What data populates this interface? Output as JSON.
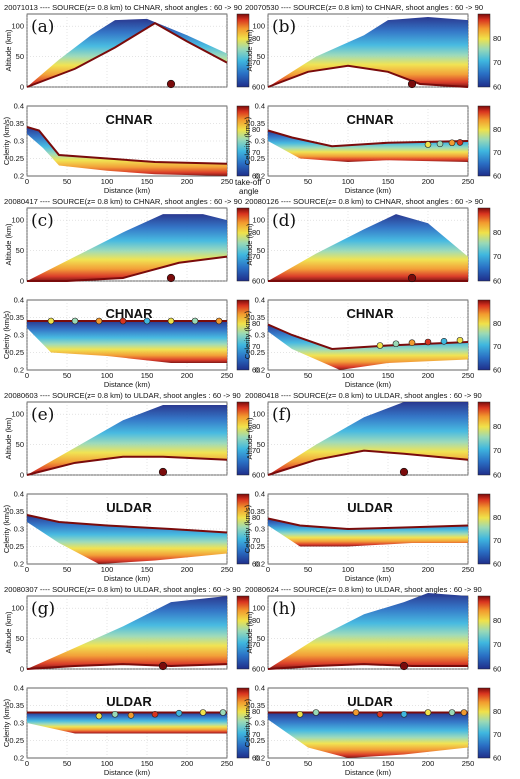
{
  "figure": {
    "colorbar_ticks": [
      60,
      70,
      80
    ],
    "colorbar_range": [
      60,
      90
    ],
    "colorbar_note_line1": "take-off",
    "colorbar_note_line2": "angle",
    "palette": [
      "#1f2e8a",
      "#2a6fc4",
      "#3fb7df",
      "#9ad9b6",
      "#f0e24a",
      "#f29a2e",
      "#d9341f",
      "#7a0b0b"
    ]
  },
  "chart_data": [
    {
      "id": "a",
      "label": "(a)",
      "title": "20071013 ---- SOURCE(z= 0.8 km) to CHNAR, shoot angles : 60 -> 90",
      "station": "CHNAR",
      "source_x_km": 180,
      "alt_ylabel": "Altitude (km)",
      "cel_ylabel": "Celerity (km/s)",
      "xlabel": "Distance (km)",
      "xlim": [
        0,
        250
      ],
      "alt_ylim": [
        0,
        120
      ],
      "cel_ylim": [
        0.2,
        0.4
      ],
      "type": "area",
      "alt_top": [
        [
          0,
          0
        ],
        [
          40,
          45
        ],
        [
          80,
          85
        ],
        [
          110,
          110
        ],
        [
          150,
          112
        ],
        [
          200,
          85
        ],
        [
          250,
          55
        ]
      ],
      "alt_bottom": [
        [
          0,
          0
        ],
        [
          60,
          30
        ],
        [
          110,
          65
        ],
        [
          160,
          105
        ],
        [
          200,
          75
        ],
        [
          250,
          40
        ]
      ],
      "cel_top": [
        [
          0,
          0.34
        ],
        [
          15,
          0.33
        ],
        [
          40,
          0.26
        ],
        [
          100,
          0.25
        ],
        [
          160,
          0.24
        ],
        [
          250,
          0.235
        ]
      ],
      "cel_bottom": [
        [
          0,
          0.32
        ],
        [
          20,
          0.28
        ],
        [
          40,
          0.23
        ],
        [
          100,
          0.215
        ],
        [
          160,
          0.205
        ],
        [
          250,
          0.2
        ]
      ],
      "arrivals": []
    },
    {
      "id": "b",
      "label": "(b)",
      "title": "20070530 ---- SOURCE(z= 0.8 km) to CHNAR, shoot angles : 60 -> 90",
      "station": "CHNAR",
      "source_x_km": 180,
      "alt_ylabel": "Altitude (km)",
      "cel_ylabel": "Celerity (km/s)",
      "xlabel": "Distance (km)",
      "xlim": [
        0,
        250
      ],
      "alt_ylim": [
        0,
        120
      ],
      "cel_ylim": [
        0.2,
        0.4
      ],
      "type": "area",
      "alt_top": [
        [
          0,
          0
        ],
        [
          60,
          50
        ],
        [
          120,
          85
        ],
        [
          150,
          110
        ],
        [
          200,
          115
        ],
        [
          250,
          110
        ]
      ],
      "alt_bottom": [
        [
          0,
          0
        ],
        [
          50,
          25
        ],
        [
          100,
          35
        ],
        [
          150,
          25
        ],
        [
          190,
          5
        ],
        [
          250,
          0
        ]
      ],
      "cel_top": [
        [
          0,
          0.33
        ],
        [
          30,
          0.31
        ],
        [
          80,
          0.285
        ],
        [
          150,
          0.295
        ],
        [
          250,
          0.3
        ]
      ],
      "cel_bottom": [
        [
          0,
          0.3
        ],
        [
          40,
          0.25
        ],
        [
          100,
          0.24
        ],
        [
          150,
          0.245
        ],
        [
          250,
          0.24
        ]
      ],
      "arrivals": [
        [
          200,
          0.29
        ],
        [
          215,
          0.292
        ],
        [
          230,
          0.295
        ],
        [
          240,
          0.296
        ]
      ]
    },
    {
      "id": "c",
      "label": "(c)",
      "title": "20080417 ---- SOURCE(z= 0.8 km) to CHNAR, shoot angles : 60 -> 90",
      "station": "CHNAR",
      "source_x_km": 180,
      "alt_ylabel": "Altitude (km)",
      "cel_ylabel": "Celerity (km/s)",
      "xlabel": "Distance (km)",
      "xlim": [
        0,
        250
      ],
      "alt_ylim": [
        0,
        120
      ],
      "cel_ylim": [
        0.2,
        0.4
      ],
      "type": "area",
      "alt_top": [
        [
          0,
          0
        ],
        [
          60,
          40
        ],
        [
          120,
          80
        ],
        [
          170,
          110
        ],
        [
          220,
          110
        ],
        [
          250,
          100
        ]
      ],
      "alt_bottom": [
        [
          0,
          0
        ],
        [
          50,
          0
        ],
        [
          120,
          5
        ],
        [
          190,
          30
        ],
        [
          250,
          40
        ]
      ],
      "cel_top": [
        [
          0,
          0.34
        ],
        [
          80,
          0.34
        ],
        [
          180,
          0.34
        ],
        [
          250,
          0.34
        ]
      ],
      "cel_bottom": [
        [
          0,
          0.32
        ],
        [
          30,
          0.25
        ],
        [
          100,
          0.24
        ],
        [
          180,
          0.22
        ],
        [
          250,
          0.22
        ]
      ],
      "arrivals": [
        [
          30,
          0.34
        ],
        [
          60,
          0.34
        ],
        [
          90,
          0.34
        ],
        [
          120,
          0.34
        ],
        [
          150,
          0.34
        ],
        [
          180,
          0.34
        ],
        [
          210,
          0.34
        ],
        [
          240,
          0.34
        ]
      ]
    },
    {
      "id": "d",
      "label": "(d)",
      "title": "20080126 ---- SOURCE(z= 0.8 km) to CHNAR, shoot angles : 60 -> 90",
      "station": "CHNAR",
      "source_x_km": 180,
      "alt_ylabel": "Altitude (km)",
      "cel_ylabel": "Celerity (km/s)",
      "xlabel": "Distance (km)",
      "xlim": [
        0,
        250
      ],
      "alt_ylim": [
        0,
        120
      ],
      "cel_ylim": [
        0.2,
        0.4
      ],
      "type": "area",
      "alt_top": [
        [
          0,
          0
        ],
        [
          60,
          45
        ],
        [
          120,
          85
        ],
        [
          160,
          110
        ],
        [
          200,
          95
        ],
        [
          250,
          40
        ]
      ],
      "alt_bottom": [
        [
          0,
          0
        ],
        [
          80,
          0
        ],
        [
          160,
          0
        ],
        [
          250,
          0
        ]
      ],
      "cel_top": [
        [
          0,
          0.33
        ],
        [
          30,
          0.3
        ],
        [
          80,
          0.26
        ],
        [
          150,
          0.27
        ],
        [
          250,
          0.28
        ]
      ],
      "cel_bottom": [
        [
          0,
          0.31
        ],
        [
          30,
          0.26
        ],
        [
          90,
          0.2
        ],
        [
          150,
          0.22
        ],
        [
          250,
          0.23
        ]
      ],
      "arrivals": [
        [
          140,
          0.27
        ],
        [
          160,
          0.275
        ],
        [
          180,
          0.278
        ],
        [
          200,
          0.28
        ],
        [
          220,
          0.282
        ],
        [
          240,
          0.285
        ]
      ]
    },
    {
      "id": "e",
      "label": "(e)",
      "title": "20080603 ---- SOURCE(z= 0.8 km) to ULDAR, shoot angles : 60 -> 90",
      "station": "ULDAR",
      "source_x_km": 170,
      "alt_ylabel": "Altitude (km)",
      "cel_ylabel": "Celerity (km/s)",
      "xlabel": "Distance (km)",
      "xlim": [
        0,
        250
      ],
      "alt_ylim": [
        0,
        120
      ],
      "cel_ylim": [
        0.2,
        0.4
      ],
      "type": "area",
      "alt_top": [
        [
          0,
          0
        ],
        [
          60,
          45
        ],
        [
          120,
          90
        ],
        [
          170,
          115
        ],
        [
          250,
          115
        ]
      ],
      "alt_bottom": [
        [
          0,
          0
        ],
        [
          60,
          20
        ],
        [
          120,
          30
        ],
        [
          170,
          30
        ],
        [
          250,
          25
        ]
      ],
      "cel_top": [
        [
          0,
          0.34
        ],
        [
          40,
          0.32
        ],
        [
          100,
          0.31
        ],
        [
          180,
          0.3
        ],
        [
          250,
          0.29
        ]
      ],
      "cel_bottom": [
        [
          0,
          0.32
        ],
        [
          40,
          0.26
        ],
        [
          90,
          0.2
        ],
        [
          160,
          0.21
        ],
        [
          250,
          0.23
        ]
      ],
      "arrivals": []
    },
    {
      "id": "f",
      "label": "(f)",
      "title": "20080418 ---- SOURCE(z= 0.8 km) to ULDAR, shoot angles : 60 -> 90",
      "station": "ULDAR",
      "source_x_km": 170,
      "alt_ylabel": "Altitude (km)",
      "cel_ylabel": "Celerity (km/s)",
      "xlabel": "Distance (km)",
      "xlim": [
        0,
        250
      ],
      "alt_ylim": [
        0,
        120
      ],
      "cel_ylim": [
        0.2,
        0.4
      ],
      "type": "area",
      "alt_top": [
        [
          0,
          0
        ],
        [
          60,
          50
        ],
        [
          120,
          95
        ],
        [
          170,
          120
        ],
        [
          250,
          120
        ]
      ],
      "alt_bottom": [
        [
          0,
          0
        ],
        [
          60,
          25
        ],
        [
          120,
          40
        ],
        [
          170,
          35
        ],
        [
          250,
          25
        ]
      ],
      "cel_top": [
        [
          0,
          0.33
        ],
        [
          40,
          0.31
        ],
        [
          100,
          0.3
        ],
        [
          180,
          0.305
        ],
        [
          250,
          0.31
        ]
      ],
      "cel_bottom": [
        [
          0,
          0.31
        ],
        [
          40,
          0.25
        ],
        [
          100,
          0.25
        ],
        [
          180,
          0.26
        ],
        [
          250,
          0.26
        ]
      ],
      "arrivals": []
    },
    {
      "id": "g",
      "label": "(g)",
      "title": "20080307 ---- SOURCE(z= 0.8 km) to ULDAR, shoot angles : 60 -> 90",
      "station": "ULDAR",
      "source_x_km": 170,
      "alt_ylabel": "Altitude (km)",
      "cel_ylabel": "Celerity (km/s)",
      "xlabel": "Distance (km)",
      "xlim": [
        0,
        250
      ],
      "alt_ylim": [
        0,
        120
      ],
      "cel_ylim": [
        0.2,
        0.4
      ],
      "type": "area",
      "alt_top": [
        [
          0,
          0
        ],
        [
          60,
          35
        ],
        [
          120,
          70
        ],
        [
          180,
          110
        ],
        [
          250,
          120
        ]
      ],
      "alt_bottom": [
        [
          0,
          0
        ],
        [
          60,
          5
        ],
        [
          120,
          8
        ],
        [
          180,
          5
        ],
        [
          250,
          8
        ]
      ],
      "cel_top": [
        [
          0,
          0.33
        ],
        [
          60,
          0.33
        ],
        [
          150,
          0.33
        ],
        [
          250,
          0.33
        ]
      ],
      "cel_bottom": [
        [
          0,
          0.3
        ],
        [
          60,
          0.27
        ],
        [
          150,
          0.27
        ],
        [
          250,
          0.27
        ]
      ],
      "arrivals": [
        [
          90,
          0.32
        ],
        [
          110,
          0.325
        ],
        [
          130,
          0.322
        ],
        [
          160,
          0.325
        ],
        [
          190,
          0.328
        ],
        [
          220,
          0.33
        ],
        [
          245,
          0.33
        ]
      ]
    },
    {
      "id": "h",
      "label": "(h)",
      "title": "20080624 ---- SOURCE(z= 0.8 km) to ULDAR, shoot angles : 60 -> 90",
      "station": "ULDAR",
      "source_x_km": 170,
      "alt_ylabel": "Altitude (km)",
      "cel_ylabel": "Celerity (km/s)",
      "xlabel": "Distance (km)",
      "xlim": [
        0,
        250
      ],
      "alt_ylim": [
        0,
        120
      ],
      "cel_ylim": [
        0.2,
        0.4
      ],
      "type": "area",
      "alt_top": [
        [
          0,
          0
        ],
        [
          60,
          50
        ],
        [
          120,
          90
        ],
        [
          170,
          110
        ],
        [
          200,
          125
        ],
        [
          250,
          120
        ]
      ],
      "alt_bottom": [
        [
          0,
          0
        ],
        [
          60,
          5
        ],
        [
          120,
          8
        ],
        [
          180,
          5
        ],
        [
          250,
          5
        ]
      ],
      "cel_top": [
        [
          0,
          0.33
        ],
        [
          60,
          0.33
        ],
        [
          150,
          0.33
        ],
        [
          250,
          0.33
        ]
      ],
      "cel_bottom": [
        [
          0,
          0.31
        ],
        [
          50,
          0.23
        ],
        [
          100,
          0.2
        ],
        [
          170,
          0.21
        ],
        [
          250,
          0.23
        ]
      ],
      "arrivals": [
        [
          40,
          0.325
        ],
        [
          60,
          0.33
        ],
        [
          110,
          0.33
        ],
        [
          140,
          0.325
        ],
        [
          170,
          0.325
        ],
        [
          200,
          0.33
        ],
        [
          230,
          0.33
        ],
        [
          245,
          0.33
        ]
      ]
    }
  ]
}
